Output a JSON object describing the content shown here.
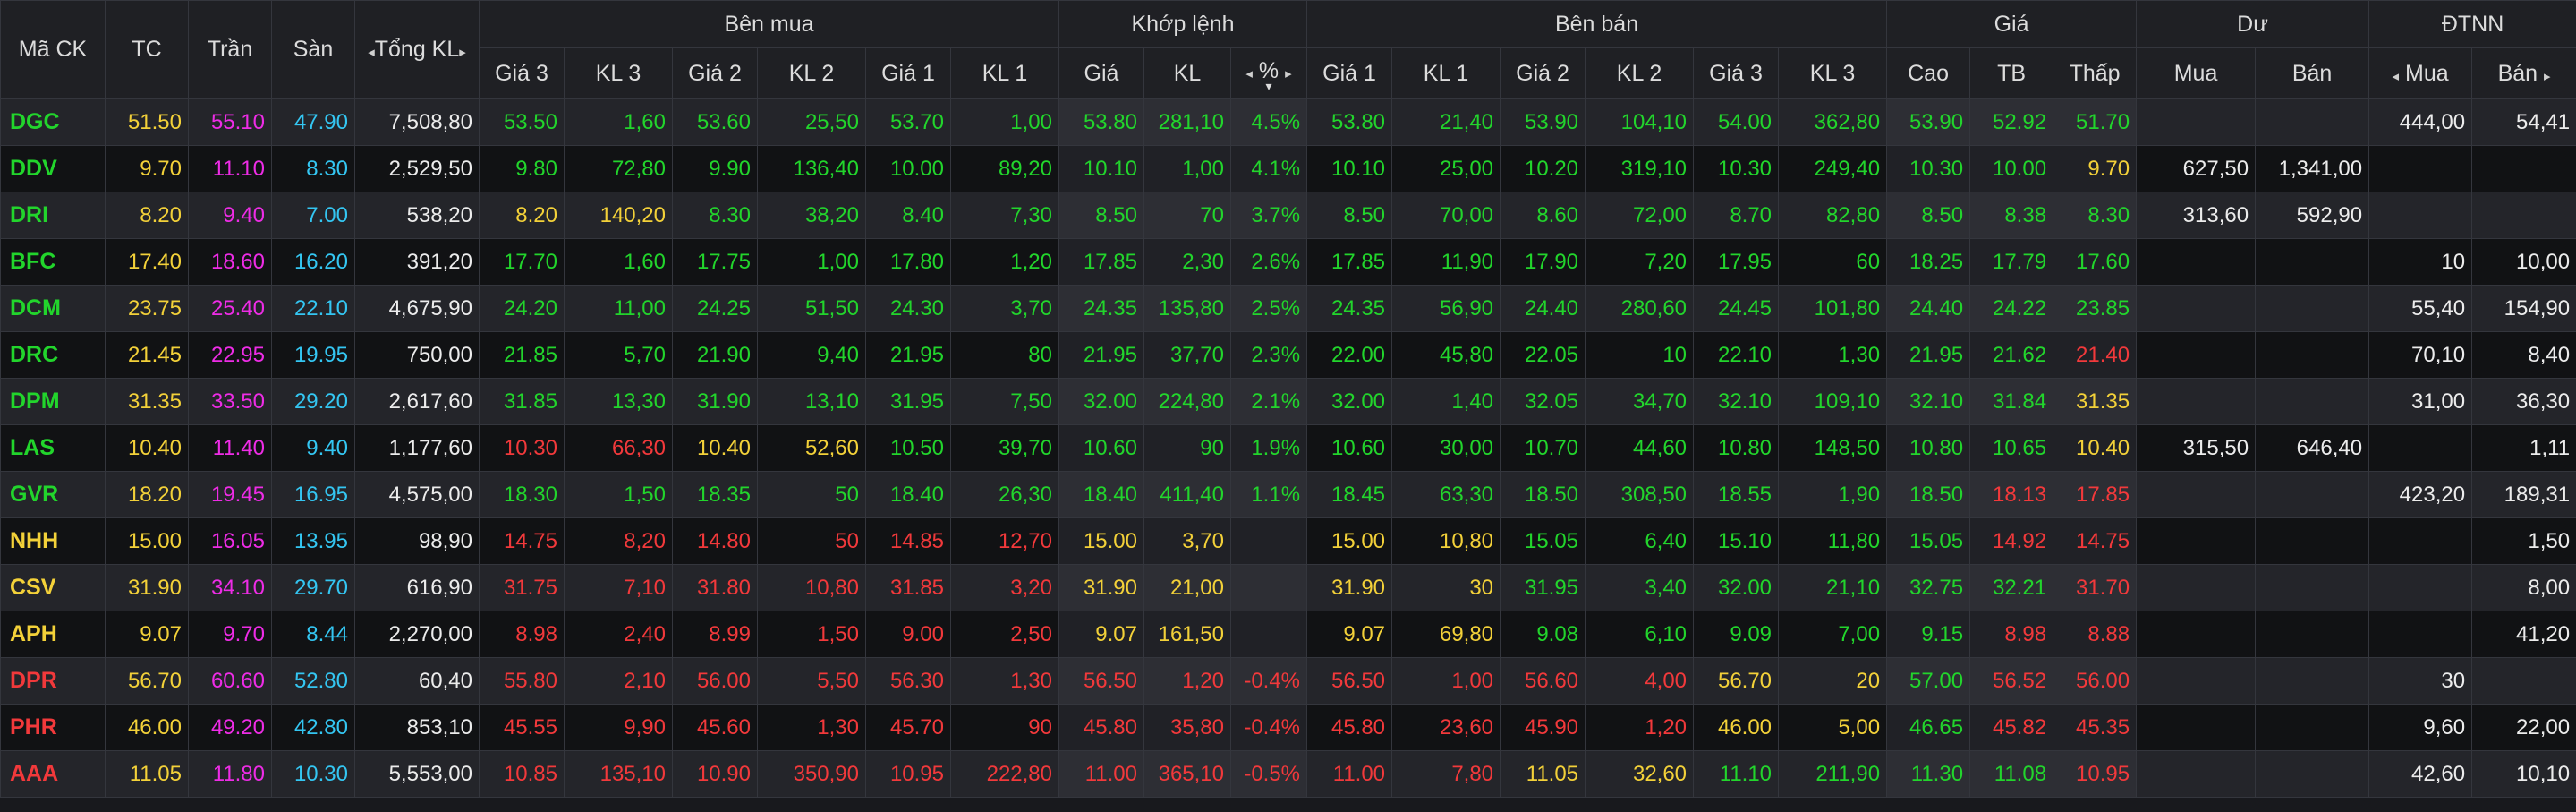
{
  "colors": {
    "up": "#22d52c",
    "ref": "#f3d139",
    "ceil": "#ee2ce6",
    "floor": "#34c6f2",
    "down": "#f2393b",
    "neutral": "#ececec"
  },
  "header": {
    "symbol": "Mã CK",
    "ref": "TC",
    "ceil": "Trần",
    "floor": "Sàn",
    "total_vol": "Tổng KL",
    "buy_group": "Bên mua",
    "match_group": "Khớp lệnh",
    "sell_group": "Bên bán",
    "price_group": "Giá",
    "surplus_group": "Dư",
    "foreign_group": "ĐTNN",
    "buy_cols": [
      "Giá 3",
      "KL 3",
      "Giá 2",
      "KL 2",
      "Giá 1",
      "KL 1"
    ],
    "match_price": "Giá",
    "match_vol": "KL",
    "match_pct": "%",
    "sell_cols": [
      "Giá 1",
      "KL 1",
      "Giá 2",
      "KL 2",
      "Giá 3",
      "KL 3"
    ],
    "price_cols": [
      "Cao",
      "TB",
      "Thấp"
    ],
    "surplus_cols": [
      "Mua",
      "Bán"
    ],
    "foreign_buy": "Mua",
    "foreign_sell": "Bán",
    "arrow_left": "◂",
    "arrow_right": "▸",
    "sort_down": "▾"
  },
  "rows": [
    {
      "v": [
        "DGC",
        "51.50",
        "55.10",
        "47.90",
        "7,508,80",
        "53.50",
        "1,60",
        "53.60",
        "25,50",
        "53.70",
        "1,00",
        "53.80",
        "281,10",
        "4.5%",
        "53.80",
        "21,40",
        "53.90",
        "104,10",
        "54.00",
        "362,80",
        "53.90",
        "52.92",
        "51.70",
        "",
        "",
        "444,00",
        "54,41"
      ],
      "c": [
        "up",
        "ref",
        "ceil",
        "floor",
        "neutral",
        "up",
        "up",
        "up",
        "up",
        "up",
        "up",
        "up",
        "up",
        "up",
        "up",
        "up",
        "up",
        "up",
        "up",
        "up",
        "up",
        "up",
        "up",
        "neutral",
        "neutral",
        "neutral",
        "neutral"
      ]
    },
    {
      "v": [
        "DDV",
        "9.70",
        "11.10",
        "8.30",
        "2,529,50",
        "9.80",
        "72,80",
        "9.90",
        "136,40",
        "10.00",
        "89,20",
        "10.10",
        "1,00",
        "4.1%",
        "10.10",
        "25,00",
        "10.20",
        "319,10",
        "10.30",
        "249,40",
        "10.30",
        "10.00",
        "9.70",
        "627,50",
        "1,341,00",
        "",
        ""
      ],
      "c": [
        "up",
        "ref",
        "ceil",
        "floor",
        "neutral",
        "up",
        "up",
        "up",
        "up",
        "up",
        "up",
        "up",
        "up",
        "up",
        "up",
        "up",
        "up",
        "up",
        "up",
        "up",
        "up",
        "up",
        "ref",
        "neutral",
        "neutral",
        "neutral",
        "neutral"
      ]
    },
    {
      "v": [
        "DRI",
        "8.20",
        "9.40",
        "7.00",
        "538,20",
        "8.20",
        "140,20",
        "8.30",
        "38,20",
        "8.40",
        "7,30",
        "8.50",
        "70",
        "3.7%",
        "8.50",
        "70,00",
        "8.60",
        "72,00",
        "8.70",
        "82,80",
        "8.50",
        "8.38",
        "8.30",
        "313,60",
        "592,90",
        "",
        ""
      ],
      "c": [
        "up",
        "ref",
        "ceil",
        "floor",
        "neutral",
        "ref",
        "ref",
        "up",
        "up",
        "up",
        "up",
        "up",
        "up",
        "up",
        "up",
        "up",
        "up",
        "up",
        "up",
        "up",
        "up",
        "up",
        "up",
        "neutral",
        "neutral",
        "neutral",
        "neutral"
      ]
    },
    {
      "v": [
        "BFC",
        "17.40",
        "18.60",
        "16.20",
        "391,20",
        "17.70",
        "1,60",
        "17.75",
        "1,00",
        "17.80",
        "1,20",
        "17.85",
        "2,30",
        "2.6%",
        "17.85",
        "11,90",
        "17.90",
        "7,20",
        "17.95",
        "60",
        "18.25",
        "17.79",
        "17.60",
        "",
        "",
        "10",
        "10,00"
      ],
      "c": [
        "up",
        "ref",
        "ceil",
        "floor",
        "neutral",
        "up",
        "up",
        "up",
        "up",
        "up",
        "up",
        "up",
        "up",
        "up",
        "up",
        "up",
        "up",
        "up",
        "up",
        "up",
        "up",
        "up",
        "up",
        "neutral",
        "neutral",
        "neutral",
        "neutral"
      ]
    },
    {
      "v": [
        "DCM",
        "23.75",
        "25.40",
        "22.10",
        "4,675,90",
        "24.20",
        "11,00",
        "24.25",
        "51,50",
        "24.30",
        "3,70",
        "24.35",
        "135,80",
        "2.5%",
        "24.35",
        "56,90",
        "24.40",
        "280,60",
        "24.45",
        "101,80",
        "24.40",
        "24.22",
        "23.85",
        "",
        "",
        "55,40",
        "154,90"
      ],
      "c": [
        "up",
        "ref",
        "ceil",
        "floor",
        "neutral",
        "up",
        "up",
        "up",
        "up",
        "up",
        "up",
        "up",
        "up",
        "up",
        "up",
        "up",
        "up",
        "up",
        "up",
        "up",
        "up",
        "up",
        "up",
        "neutral",
        "neutral",
        "neutral",
        "neutral"
      ]
    },
    {
      "v": [
        "DRC",
        "21.45",
        "22.95",
        "19.95",
        "750,00",
        "21.85",
        "5,70",
        "21.90",
        "9,40",
        "21.95",
        "80",
        "21.95",
        "37,70",
        "2.3%",
        "22.00",
        "45,80",
        "22.05",
        "10",
        "22.10",
        "1,30",
        "21.95",
        "21.62",
        "21.40",
        "",
        "",
        "70,10",
        "8,40"
      ],
      "c": [
        "up",
        "ref",
        "ceil",
        "floor",
        "neutral",
        "up",
        "up",
        "up",
        "up",
        "up",
        "up",
        "up",
        "up",
        "up",
        "up",
        "up",
        "up",
        "up",
        "up",
        "up",
        "up",
        "up",
        "down",
        "neutral",
        "neutral",
        "neutral",
        "neutral"
      ]
    },
    {
      "v": [
        "DPM",
        "31.35",
        "33.50",
        "29.20",
        "2,617,60",
        "31.85",
        "13,30",
        "31.90",
        "13,10",
        "31.95",
        "7,50",
        "32.00",
        "224,80",
        "2.1%",
        "32.00",
        "1,40",
        "32.05",
        "34,70",
        "32.10",
        "109,10",
        "32.10",
        "31.84",
        "31.35",
        "",
        "",
        "31,00",
        "36,30"
      ],
      "c": [
        "up",
        "ref",
        "ceil",
        "floor",
        "neutral",
        "up",
        "up",
        "up",
        "up",
        "up",
        "up",
        "up",
        "up",
        "up",
        "up",
        "up",
        "up",
        "up",
        "up",
        "up",
        "up",
        "up",
        "ref",
        "neutral",
        "neutral",
        "neutral",
        "neutral"
      ]
    },
    {
      "v": [
        "LAS",
        "10.40",
        "11.40",
        "9.40",
        "1,177,60",
        "10.30",
        "66,30",
        "10.40",
        "52,60",
        "10.50",
        "39,70",
        "10.60",
        "90",
        "1.9%",
        "10.60",
        "30,00",
        "10.70",
        "44,60",
        "10.80",
        "148,50",
        "10.80",
        "10.65",
        "10.40",
        "315,50",
        "646,40",
        "",
        "1,11"
      ],
      "c": [
        "up",
        "ref",
        "ceil",
        "floor",
        "neutral",
        "down",
        "down",
        "ref",
        "ref",
        "up",
        "up",
        "up",
        "up",
        "up",
        "up",
        "up",
        "up",
        "up",
        "up",
        "up",
        "up",
        "up",
        "ref",
        "neutral",
        "neutral",
        "neutral",
        "neutral"
      ]
    },
    {
      "v": [
        "GVR",
        "18.20",
        "19.45",
        "16.95",
        "4,575,00",
        "18.30",
        "1,50",
        "18.35",
        "50",
        "18.40",
        "26,30",
        "18.40",
        "411,40",
        "1.1%",
        "18.45",
        "63,30",
        "18.50",
        "308,50",
        "18.55",
        "1,90",
        "18.50",
        "18.13",
        "17.85",
        "",
        "",
        "423,20",
        "189,31"
      ],
      "c": [
        "up",
        "ref",
        "ceil",
        "floor",
        "neutral",
        "up",
        "up",
        "up",
        "up",
        "up",
        "up",
        "up",
        "up",
        "up",
        "up",
        "up",
        "up",
        "up",
        "up",
        "up",
        "up",
        "down",
        "down",
        "neutral",
        "neutral",
        "neutral",
        "neutral"
      ]
    },
    {
      "v": [
        "NHH",
        "15.00",
        "16.05",
        "13.95",
        "98,90",
        "14.75",
        "8,20",
        "14.80",
        "50",
        "14.85",
        "12,70",
        "15.00",
        "3,70",
        "",
        "15.00",
        "10,80",
        "15.05",
        "6,40",
        "15.10",
        "11,80",
        "15.05",
        "14.92",
        "14.75",
        "",
        "",
        "",
        "1,50"
      ],
      "c": [
        "ref",
        "ref",
        "ceil",
        "floor",
        "neutral",
        "down",
        "down",
        "down",
        "down",
        "down",
        "down",
        "ref",
        "ref",
        "ref",
        "ref",
        "ref",
        "up",
        "up",
        "up",
        "up",
        "up",
        "down",
        "down",
        "neutral",
        "neutral",
        "neutral",
        "neutral"
      ]
    },
    {
      "v": [
        "CSV",
        "31.90",
        "34.10",
        "29.70",
        "616,90",
        "31.75",
        "7,10",
        "31.80",
        "10,80",
        "31.85",
        "3,20",
        "31.90",
        "21,00",
        "",
        "31.90",
        "30",
        "31.95",
        "3,40",
        "32.00",
        "21,10",
        "32.75",
        "32.21",
        "31.70",
        "",
        "",
        "",
        "8,00"
      ],
      "c": [
        "ref",
        "ref",
        "ceil",
        "floor",
        "neutral",
        "down",
        "down",
        "down",
        "down",
        "down",
        "down",
        "ref",
        "ref",
        "ref",
        "ref",
        "ref",
        "up",
        "up",
        "up",
        "up",
        "up",
        "up",
        "down",
        "neutral",
        "neutral",
        "neutral",
        "neutral"
      ]
    },
    {
      "v": [
        "APH",
        "9.07",
        "9.70",
        "8.44",
        "2,270,00",
        "8.98",
        "2,40",
        "8.99",
        "1,50",
        "9.00",
        "2,50",
        "9.07",
        "161,50",
        "",
        "9.07",
        "69,80",
        "9.08",
        "6,10",
        "9.09",
        "7,00",
        "9.15",
        "8.98",
        "8.88",
        "",
        "",
        "",
        "41,20"
      ],
      "c": [
        "ref",
        "ref",
        "ceil",
        "floor",
        "neutral",
        "down",
        "down",
        "down",
        "down",
        "down",
        "down",
        "ref",
        "ref",
        "ref",
        "ref",
        "ref",
        "up",
        "up",
        "up",
        "up",
        "up",
        "down",
        "down",
        "neutral",
        "neutral",
        "neutral",
        "neutral"
      ]
    },
    {
      "v": [
        "DPR",
        "56.70",
        "60.60",
        "52.80",
        "60,40",
        "55.80",
        "2,10",
        "56.00",
        "5,50",
        "56.30",
        "1,30",
        "56.50",
        "1,20",
        "-0.4%",
        "56.50",
        "1,00",
        "56.60",
        "4,00",
        "56.70",
        "20",
        "57.00",
        "56.52",
        "56.00",
        "",
        "",
        "30",
        ""
      ],
      "c": [
        "down",
        "ref",
        "ceil",
        "floor",
        "neutral",
        "down",
        "down",
        "down",
        "down",
        "down",
        "down",
        "down",
        "down",
        "down",
        "down",
        "down",
        "down",
        "down",
        "ref",
        "ref",
        "up",
        "down",
        "down",
        "neutral",
        "neutral",
        "neutral",
        "neutral"
      ]
    },
    {
      "v": [
        "PHR",
        "46.00",
        "49.20",
        "42.80",
        "853,10",
        "45.55",
        "9,90",
        "45.60",
        "1,30",
        "45.70",
        "90",
        "45.80",
        "35,80",
        "-0.4%",
        "45.80",
        "23,60",
        "45.90",
        "1,20",
        "46.00",
        "5,00",
        "46.65",
        "45.82",
        "45.35",
        "",
        "",
        "9,60",
        "22,00"
      ],
      "c": [
        "down",
        "ref",
        "ceil",
        "floor",
        "neutral",
        "down",
        "down",
        "down",
        "down",
        "down",
        "down",
        "down",
        "down",
        "down",
        "down",
        "down",
        "down",
        "down",
        "ref",
        "ref",
        "up",
        "down",
        "down",
        "neutral",
        "neutral",
        "neutral",
        "neutral"
      ]
    },
    {
      "v": [
        "AAA",
        "11.05",
        "11.80",
        "10.30",
        "5,553,00",
        "10.85",
        "135,10",
        "10.90",
        "350,90",
        "10.95",
        "222,80",
        "11.00",
        "365,10",
        "-0.5%",
        "11.00",
        "7,80",
        "11.05",
        "32,60",
        "11.10",
        "211,90",
        "11.30",
        "11.08",
        "10.95",
        "",
        "",
        "42,60",
        "10,10"
      ],
      "c": [
        "down",
        "ref",
        "ceil",
        "floor",
        "neutral",
        "down",
        "down",
        "down",
        "down",
        "down",
        "down",
        "down",
        "down",
        "down",
        "down",
        "down",
        "ref",
        "ref",
        "up",
        "up",
        "up",
        "up",
        "down",
        "neutral",
        "neutral",
        "neutral",
        "neutral"
      ]
    }
  ]
}
